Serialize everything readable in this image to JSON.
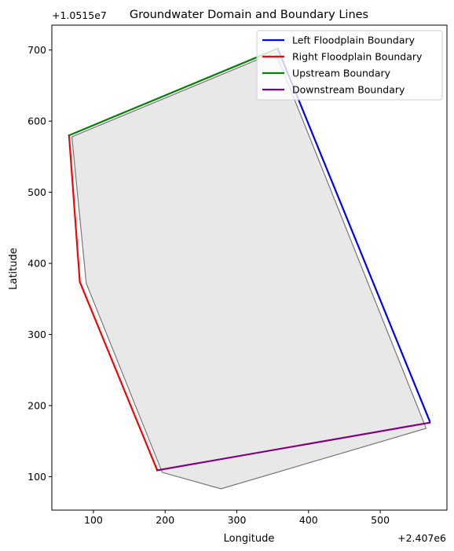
{
  "chart_data": {
    "type": "line",
    "title": "Groundwater Domain and Boundary Lines",
    "xlabel": "Longitude",
    "ylabel": "Latitude",
    "x_offset_label": "+2.407e6",
    "y_offset_label": "+1.0515e7",
    "xlim": [
      42,
      593
    ],
    "ylim": [
      53,
      735
    ],
    "x_ticks": [
      100,
      200,
      300,
      400,
      500
    ],
    "y_ticks": [
      100,
      200,
      300,
      400,
      500,
      600,
      700
    ],
    "grid": false,
    "legend_position": "top-right",
    "domain_polygon": {
      "fill": "#e8e8e8",
      "edge": "#777777",
      "points": [
        [
          70,
          578
        ],
        [
          90,
          372
        ],
        [
          196,
          106
        ],
        [
          278,
          83
        ],
        [
          564,
          168
        ],
        [
          354,
          697
        ]
      ]
    },
    "series": [
      {
        "name": "Left Floodplain Boundary",
        "color": "#0000ff",
        "x": [
          357,
          569
        ],
        "y": [
          702,
          178
        ]
      },
      {
        "name": "Right Floodplain Boundary",
        "color": "#ff0000",
        "x": [
          66,
          81,
          189
        ],
        "y": [
          580,
          374,
          109
        ]
      },
      {
        "name": "Upstream Boundary",
        "color": "#008000",
        "x": [
          66,
          357
        ],
        "y": [
          580,
          702
        ]
      },
      {
        "name": "Downstream Boundary",
        "color": "#800080",
        "x": [
          189,
          569
        ],
        "y": [
          109,
          176
        ]
      }
    ]
  }
}
